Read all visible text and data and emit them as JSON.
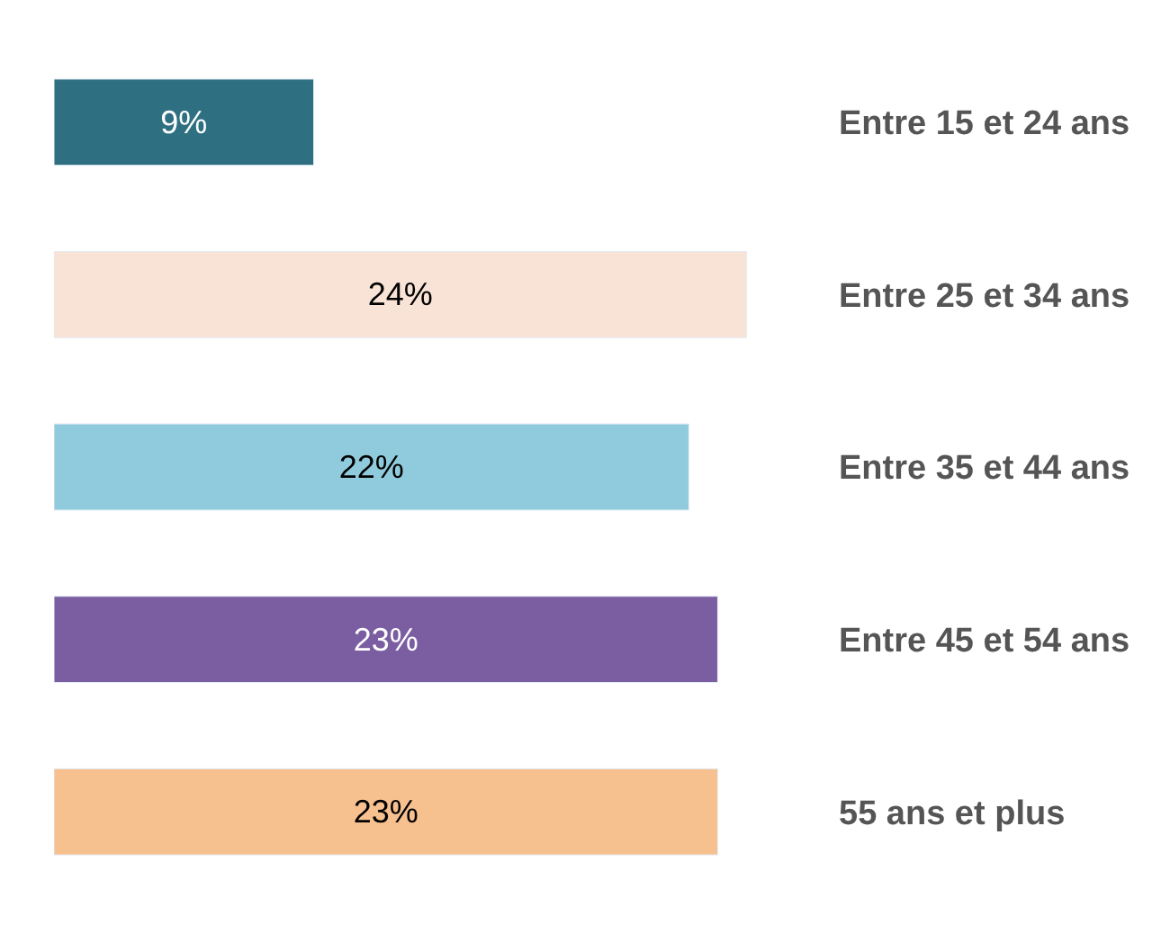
{
  "chart_data": {
    "type": "bar",
    "orientation": "horizontal",
    "categories": [
      "Entre 15 et 24 ans",
      "Entre 25 et 34 ans",
      "Entre 35 et 44 ans",
      "Entre 45 et 54 ans",
      "55 ans et plus"
    ],
    "values": [
      9,
      24,
      22,
      23,
      23
    ],
    "colors": [
      "#2e7082",
      "#f9e3d7",
      "#8fcbdc",
      "#7b5ea1",
      "#f7c08f"
    ],
    "value_labels": [
      "9%",
      "24%",
      "22%",
      "23%",
      "23%"
    ],
    "legend": false,
    "tick_labels": "y"
  }
}
